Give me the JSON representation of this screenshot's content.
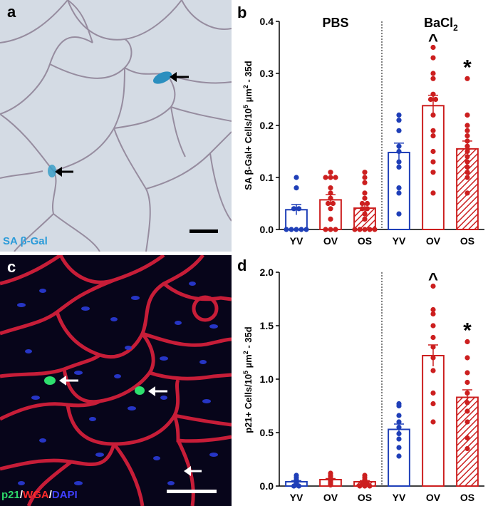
{
  "panel_a": {
    "letter": "a",
    "stain_label": "SA β-Gal",
    "stain_color": "#2b9bd9",
    "arrow_icon": "black-arrow-icon",
    "scale_bar_icon": "scale-bar-icon"
  },
  "panel_c": {
    "letter": "c",
    "legend": [
      {
        "text": "p21",
        "color": "#2dd86a"
      },
      {
        "text": "/",
        "color": "#ffffff"
      },
      {
        "text": "WGA",
        "color": "#ff2a2a"
      },
      {
        "text": "/",
        "color": "#ffffff"
      },
      {
        "text": "DAPI",
        "color": "#3f3fff"
      }
    ],
    "arrow_icon": "white-arrow-icon",
    "scale_bar_icon": "scale-bar-icon"
  },
  "colors": {
    "blue": "#1f3fb8",
    "red": "#cc1f1f"
  },
  "chart_data": [
    {
      "panel_letter": "b",
      "type": "bar",
      "group_labels": [
        "PBS",
        "BaCl",
        "2"
      ],
      "ylabel_parts": [
        "SA β-Gal+ Cells/10",
        "5",
        " µm",
        "2",
        " - 35d"
      ],
      "categories": [
        "YV",
        "OV",
        "OS",
        "YV",
        "OV",
        "OS"
      ],
      "ylim": [
        0,
        0.4
      ],
      "yticks": [
        "0.0",
        "0.1",
        "0.2",
        "0.3",
        "0.4"
      ],
      "ytick_values": [
        0,
        0.1,
        0.2,
        0.3,
        0.4
      ],
      "means": [
        0.038,
        0.057,
        0.041,
        0.148,
        0.238,
        0.155
      ],
      "sems": [
        0.01,
        0.01,
        0.008,
        0.018,
        0.02,
        0.015
      ],
      "colors": [
        "blue",
        "red",
        "red",
        "blue",
        "red",
        "red"
      ],
      "hatched": [
        false,
        false,
        true,
        false,
        false,
        true
      ],
      "annotations": [
        "",
        "",
        "",
        "",
        "^",
        "*"
      ],
      "points": [
        [
          0.1,
          0.08,
          0.04,
          0.04,
          0.0,
          0.0,
          0.0,
          0.0,
          0.0
        ],
        [
          0.11,
          0.1,
          0.1,
          0.1,
          0.08,
          0.07,
          0.06,
          0.05,
          0.05,
          0.04,
          0.02,
          0.0,
          0.0,
          0.0
        ],
        [
          0.11,
          0.1,
          0.09,
          0.07,
          0.06,
          0.05,
          0.05,
          0.04,
          0.04,
          0.03,
          0.02,
          0.0,
          0.0,
          0.0,
          0.0,
          0.0
        ],
        [
          0.22,
          0.21,
          0.19,
          0.16,
          0.15,
          0.13,
          0.12,
          0.08,
          0.07,
          0.03
        ],
        [
          0.35,
          0.33,
          0.3,
          0.29,
          0.26,
          0.25,
          0.25,
          0.22,
          0.19,
          0.18,
          0.15,
          0.13,
          0.11,
          0.07
        ],
        [
          0.29,
          0.22,
          0.2,
          0.19,
          0.18,
          0.17,
          0.16,
          0.15,
          0.14,
          0.13,
          0.12,
          0.11,
          0.1,
          0.07
        ]
      ]
    },
    {
      "panel_letter": "d",
      "type": "bar",
      "group_labels": [],
      "ylabel_parts": [
        "p21+ Cells/10",
        "5",
        " µm",
        "2",
        " - 35d"
      ],
      "categories": [
        "YV",
        "OV",
        "OS",
        "YV",
        "OV",
        "OS"
      ],
      "ylim": [
        0,
        2.0
      ],
      "yticks": [
        "0.0",
        "0.5",
        "1.0",
        "1.5",
        "2.0"
      ],
      "ytick_values": [
        0,
        0.5,
        1.0,
        1.5,
        2.0
      ],
      "means": [
        0.04,
        0.06,
        0.04,
        0.53,
        1.22,
        0.83
      ],
      "sems": [
        0.01,
        0.01,
        0.01,
        0.05,
        0.1,
        0.07
      ],
      "colors": [
        "blue",
        "red",
        "red",
        "blue",
        "red",
        "red"
      ],
      "hatched": [
        false,
        false,
        true,
        false,
        false,
        true
      ],
      "annotations": [
        "",
        "",
        "",
        "",
        "^",
        "*"
      ],
      "points": [
        [
          0.1,
          0.08,
          0.06,
          0.05,
          0.04,
          0.03,
          0.02,
          0.01,
          0.0,
          0.0
        ],
        [
          0.12,
          0.1,
          0.09,
          0.07,
          0.06,
          0.05,
          0.04,
          0.03,
          0.02,
          0.01
        ],
        [
          0.1,
          0.08,
          0.06,
          0.05,
          0.04,
          0.03,
          0.02,
          0.02,
          0.01,
          0.0,
          0.0,
          0.0
        ],
        [
          0.77,
          0.75,
          0.66,
          0.6,
          0.55,
          0.49,
          0.44,
          0.36,
          0.28
        ],
        [
          1.87,
          1.65,
          1.61,
          1.5,
          1.39,
          1.3,
          1.2,
          1.08,
          0.87,
          0.77,
          0.6
        ],
        [
          1.35,
          1.2,
          1.06,
          0.97,
          0.87,
          0.78,
          0.7,
          0.6,
          0.45,
          0.35
        ]
      ]
    }
  ]
}
